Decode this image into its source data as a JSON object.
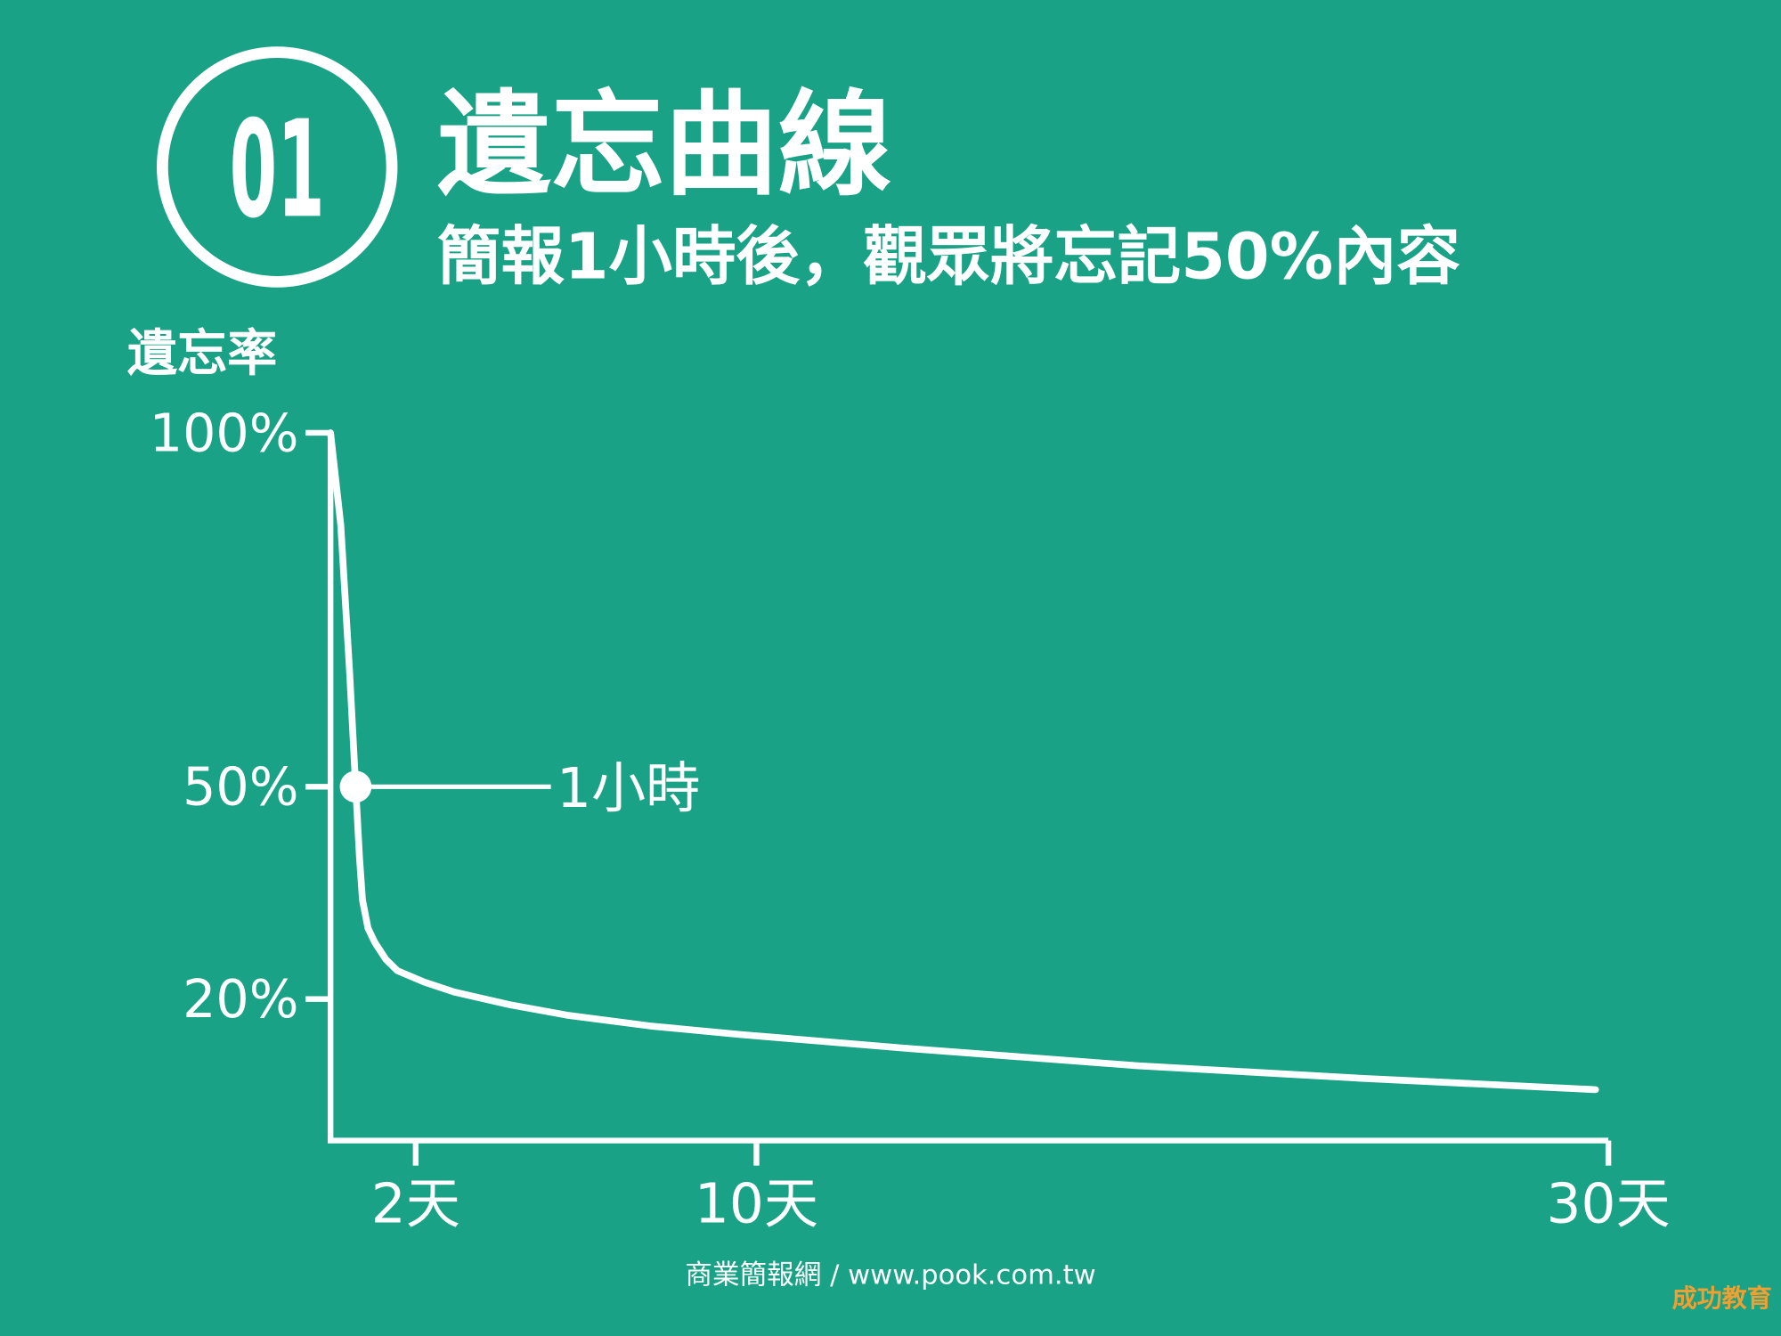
{
  "badge": "01",
  "chart_data": {
    "type": "line",
    "title": "遺忘曲線",
    "subtitle": "簡報1小時後，觀眾將忘記50%內容",
    "y_label": "遺忘率",
    "x": [
      0,
      0.24,
      0.45,
      0.59,
      0.68,
      0.75,
      0.88,
      1.04,
      1.3,
      1.57,
      2.2,
      2.9,
      4.2,
      5.57,
      7.5,
      9.6,
      13.6,
      18.9,
      24.2,
      29.7
    ],
    "series": [
      {
        "color": "#ffffff",
        "values": [
          100,
          87,
          66,
          50,
          40,
          34,
          30,
          28,
          25.6,
          24,
          22.4,
          21,
          19.2,
          17.7,
          16.2,
          15,
          13,
          10.6,
          8.8,
          7.2
        ]
      }
    ],
    "xlim": [
      0,
      30
    ],
    "xticks": [
      {
        "value": 2,
        "label": "2天"
      },
      {
        "value": 10,
        "label": "10天"
      },
      {
        "value": 30,
        "label": "30天"
      }
    ],
    "ylim": [
      0,
      100
    ],
    "yticks": [
      {
        "value": 100,
        "label": "100%"
      },
      {
        "value": 50,
        "label": "50%"
      },
      {
        "value": 20,
        "label": "20%"
      }
    ],
    "annotations": [
      {
        "text": "1小時",
        "x": 0.59,
        "y": 50
      }
    ]
  },
  "footer": "商業簡報網 / www.pook.com.tw",
  "watermark": "成功教育"
}
